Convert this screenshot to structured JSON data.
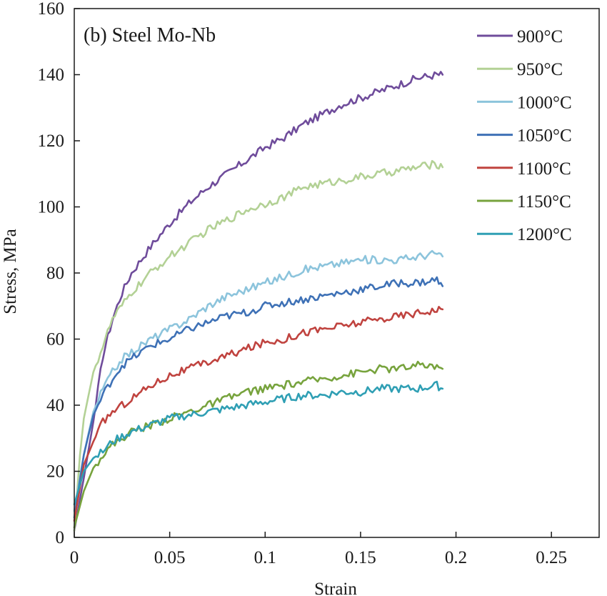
{
  "chart_data": {
    "type": "line",
    "title": "(b) Steel Mo-Nb",
    "xlabel": "Strain",
    "ylabel": "Stress, MPa",
    "xlim": [
      0,
      0.275
    ],
    "ylim": [
      0,
      160
    ],
    "xticks": [
      0,
      0.05,
      0.1,
      0.15,
      0.2,
      0.25
    ],
    "xtick_labels": [
      "0",
      "0.05",
      "0.1",
      "0.15",
      "0.2",
      "0.25"
    ],
    "yticks": [
      0,
      20,
      40,
      60,
      80,
      100,
      120,
      140,
      160
    ],
    "ytick_labels": [
      "0",
      "20",
      "40",
      "60",
      "80",
      "100",
      "120",
      "140",
      "160"
    ],
    "grid": false,
    "legend_position": "top-right",
    "series": [
      {
        "name": "900°C",
        "color": "#6f4c9b",
        "points": [
          [
            0,
            2
          ],
          [
            0.005,
            18
          ],
          [
            0.01,
            35
          ],
          [
            0.015,
            55
          ],
          [
            0.02,
            66
          ],
          [
            0.025,
            74
          ],
          [
            0.03,
            80
          ],
          [
            0.04,
            88
          ],
          [
            0.05,
            95
          ],
          [
            0.06,
            101
          ],
          [
            0.07,
            106
          ],
          [
            0.08,
            110
          ],
          [
            0.09,
            114
          ],
          [
            0.1,
            118
          ],
          [
            0.11,
            121
          ],
          [
            0.12,
            125
          ],
          [
            0.13,
            128
          ],
          [
            0.14,
            131
          ],
          [
            0.15,
            133
          ],
          [
            0.16,
            135
          ],
          [
            0.17,
            137
          ],
          [
            0.18,
            139
          ],
          [
            0.19,
            140
          ],
          [
            0.193,
            140
          ]
        ]
      },
      {
        "name": "950°C",
        "color": "#b3d195",
        "points": [
          [
            0,
            2
          ],
          [
            0.003,
            25
          ],
          [
            0.005,
            36
          ],
          [
            0.01,
            50
          ],
          [
            0.015,
            58
          ],
          [
            0.02,
            66
          ],
          [
            0.025,
            70
          ],
          [
            0.03,
            74
          ],
          [
            0.04,
            80
          ],
          [
            0.05,
            85
          ],
          [
            0.06,
            89
          ],
          [
            0.07,
            93
          ],
          [
            0.08,
            96
          ],
          [
            0.09,
            99
          ],
          [
            0.1,
            101
          ],
          [
            0.11,
            103
          ],
          [
            0.12,
            106
          ],
          [
            0.13,
            107
          ],
          [
            0.14,
            108
          ],
          [
            0.15,
            109
          ],
          [
            0.16,
            110
          ],
          [
            0.17,
            111
          ],
          [
            0.18,
            112
          ],
          [
            0.19,
            113
          ],
          [
            0.193,
            112
          ]
        ]
      },
      {
        "name": "1000°C",
        "color": "#8cc4dc",
        "points": [
          [
            0,
            8
          ],
          [
            0.005,
            25
          ],
          [
            0.01,
            38
          ],
          [
            0.015,
            45
          ],
          [
            0.02,
            50
          ],
          [
            0.025,
            54
          ],
          [
            0.03,
            56
          ],
          [
            0.04,
            60
          ],
          [
            0.05,
            63
          ],
          [
            0.06,
            66
          ],
          [
            0.07,
            70
          ],
          [
            0.08,
            73
          ],
          [
            0.09,
            75
          ],
          [
            0.1,
            77
          ],
          [
            0.11,
            79
          ],
          [
            0.12,
            81
          ],
          [
            0.13,
            82
          ],
          [
            0.14,
            83
          ],
          [
            0.15,
            84
          ],
          [
            0.16,
            84
          ],
          [
            0.17,
            84
          ],
          [
            0.18,
            85
          ],
          [
            0.19,
            86
          ],
          [
            0.193,
            85
          ]
        ]
      },
      {
        "name": "1050°C",
        "color": "#3e71b6",
        "points": [
          [
            0,
            6
          ],
          [
            0.005,
            25
          ],
          [
            0.01,
            37
          ],
          [
            0.015,
            43
          ],
          [
            0.02,
            48
          ],
          [
            0.025,
            52
          ],
          [
            0.03,
            54
          ],
          [
            0.04,
            58
          ],
          [
            0.05,
            60
          ],
          [
            0.06,
            63
          ],
          [
            0.07,
            65
          ],
          [
            0.08,
            67
          ],
          [
            0.09,
            68
          ],
          [
            0.1,
            70
          ],
          [
            0.11,
            71
          ],
          [
            0.12,
            72
          ],
          [
            0.13,
            73
          ],
          [
            0.14,
            74
          ],
          [
            0.15,
            75
          ],
          [
            0.16,
            76
          ],
          [
            0.17,
            77
          ],
          [
            0.18,
            77
          ],
          [
            0.19,
            78
          ],
          [
            0.193,
            76
          ]
        ]
      },
      {
        "name": "1100°C",
        "color": "#c0433f",
        "points": [
          [
            0,
            5
          ],
          [
            0.005,
            22
          ],
          [
            0.01,
            29
          ],
          [
            0.015,
            35
          ],
          [
            0.02,
            38
          ],
          [
            0.03,
            42
          ],
          [
            0.04,
            46
          ],
          [
            0.05,
            49
          ],
          [
            0.06,
            51
          ],
          [
            0.07,
            53
          ],
          [
            0.08,
            55
          ],
          [
            0.09,
            57
          ],
          [
            0.1,
            59
          ],
          [
            0.11,
            60
          ],
          [
            0.12,
            62
          ],
          [
            0.13,
            63
          ],
          [
            0.14,
            64
          ],
          [
            0.15,
            65
          ],
          [
            0.16,
            66
          ],
          [
            0.17,
            67
          ],
          [
            0.18,
            68
          ],
          [
            0.19,
            69
          ],
          [
            0.193,
            69
          ]
        ]
      },
      {
        "name": "1150°C",
        "color": "#77a33d",
        "points": [
          [
            0,
            3
          ],
          [
            0.005,
            14
          ],
          [
            0.01,
            21
          ],
          [
            0.015,
            25
          ],
          [
            0.02,
            28
          ],
          [
            0.03,
            32
          ],
          [
            0.04,
            34
          ],
          [
            0.05,
            36
          ],
          [
            0.06,
            38
          ],
          [
            0.07,
            40
          ],
          [
            0.08,
            42
          ],
          [
            0.09,
            44
          ],
          [
            0.1,
            45
          ],
          [
            0.11,
            46
          ],
          [
            0.12,
            47
          ],
          [
            0.13,
            48
          ],
          [
            0.14,
            49
          ],
          [
            0.15,
            50
          ],
          [
            0.16,
            51
          ],
          [
            0.17,
            51
          ],
          [
            0.18,
            52
          ],
          [
            0.19,
            52
          ],
          [
            0.193,
            51
          ]
        ]
      },
      {
        "name": "1200°C",
        "color": "#2f9fb4",
        "points": [
          [
            0,
            10
          ],
          [
            0.005,
            20
          ],
          [
            0.01,
            24
          ],
          [
            0.015,
            26
          ],
          [
            0.02,
            29
          ],
          [
            0.03,
            32
          ],
          [
            0.04,
            34
          ],
          [
            0.05,
            36
          ],
          [
            0.06,
            37
          ],
          [
            0.07,
            38
          ],
          [
            0.08,
            39
          ],
          [
            0.09,
            40
          ],
          [
            0.1,
            41
          ],
          [
            0.11,
            42
          ],
          [
            0.12,
            43
          ],
          [
            0.13,
            43
          ],
          [
            0.14,
            44
          ],
          [
            0.15,
            44
          ],
          [
            0.16,
            45
          ],
          [
            0.17,
            45
          ],
          [
            0.18,
            45
          ],
          [
            0.19,
            46
          ],
          [
            0.193,
            45
          ]
        ]
      }
    ]
  }
}
